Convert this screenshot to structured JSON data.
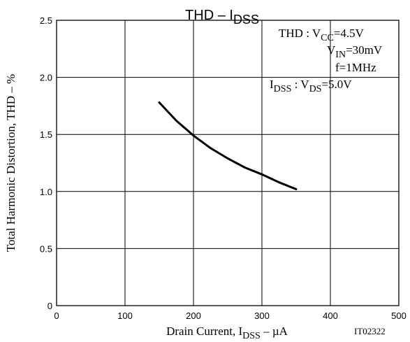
{
  "chart_data": {
    "type": "line",
    "title": {
      "main": "THD – I",
      "sub": "DSS"
    },
    "xlabel": {
      "pre": "Drain Current, I",
      "sub": "DSS",
      "post": " – µA"
    },
    "ylabel": "Total Harmonic Distortion, THD – %",
    "figure_id": "IT02322",
    "xlim": [
      0,
      500
    ],
    "ylim": [
      0,
      2.5
    ],
    "x_ticks": [
      0,
      100,
      200,
      300,
      400,
      500
    ],
    "y_ticks": [
      0,
      0.5,
      1.0,
      1.5,
      2.0,
      2.5
    ],
    "x_tick_labels": [
      "0",
      "100",
      "200",
      "300",
      "400",
      "500"
    ],
    "y_tick_labels": [
      "0",
      "0.5",
      "1.0",
      "1.5",
      "2.0",
      "2.5"
    ],
    "grid": true,
    "series": [
      {
        "x": [
          150,
          175,
          200,
          225,
          250,
          275,
          300,
          325,
          350
        ],
        "y": [
          1.78,
          1.62,
          1.49,
          1.38,
          1.29,
          1.21,
          1.15,
          1.08,
          1.02
        ]
      }
    ],
    "conditions": {
      "thd_prefix": "THD : ",
      "vcc": {
        "pre": "V",
        "sub": "CC",
        "post": "=4.5V"
      },
      "vin": {
        "pre": "V",
        "sub": "IN",
        "post": "=30mV"
      },
      "freq": "f=1MHz",
      "idss": {
        "pre": "I",
        "sub": "DSS",
        "post": " : "
      },
      "vds": {
        "pre": "V",
        "sub": "DS",
        "post": "=5.0V"
      }
    }
  }
}
